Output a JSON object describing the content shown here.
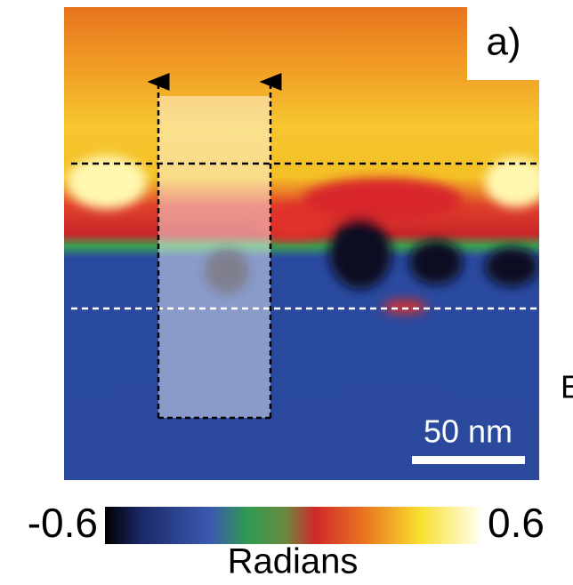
{
  "panel_label": "a)",
  "scale_bar": "50 nm",
  "colorbar": {
    "min": -0.6,
    "max": 0.6,
    "label": "Radians"
  },
  "edge_text": "E"
}
